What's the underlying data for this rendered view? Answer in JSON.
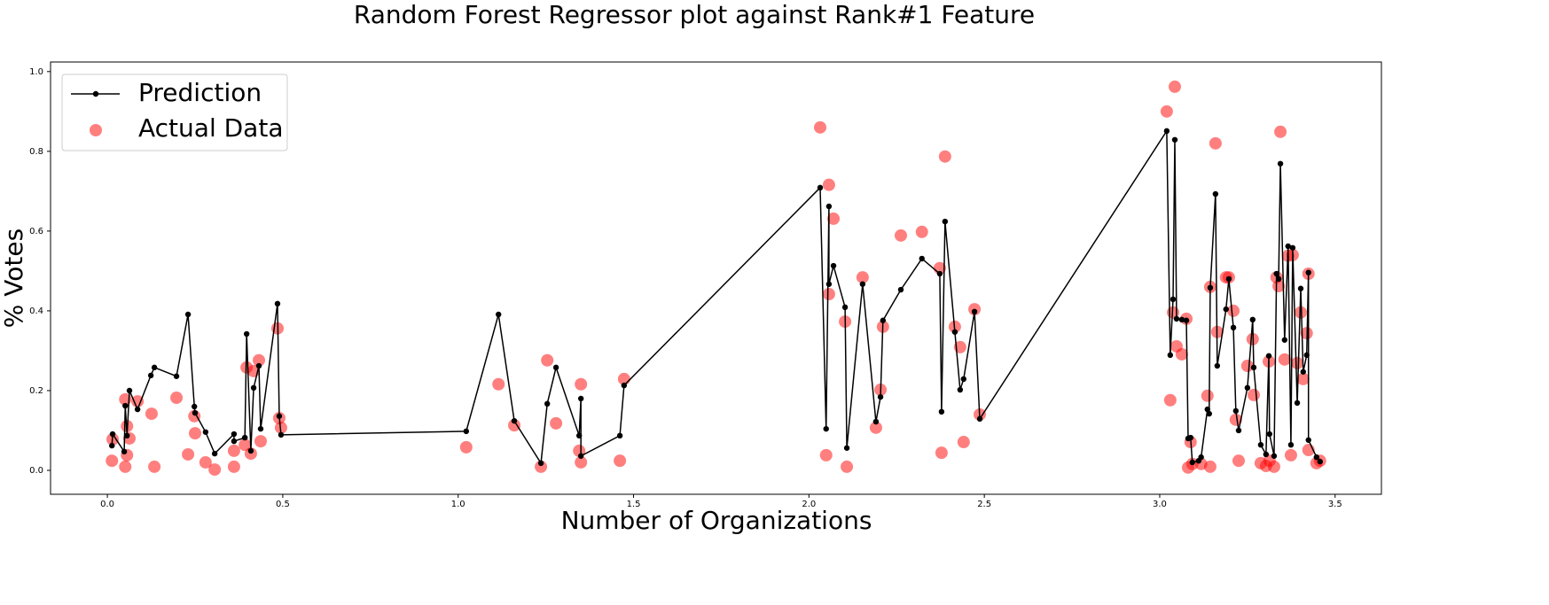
{
  "chart_data": {
    "type": "line",
    "title": "Random Forest Regressor plot against Rank#1 Feature",
    "x_label": "Number of Organizations",
    "y_label": "% Votes",
    "xlim": [
      -0.162,
      3.632
    ],
    "ylim": [
      -0.06,
      1.024
    ],
    "xticks": [
      {
        "value": 0,
        "label": "0.0"
      },
      0.5,
      {
        "value": 1,
        "label": "1.0"
      },
      1.5,
      {
        "value": 2,
        "label": "2.0"
      },
      2.5,
      {
        "value": 3,
        "label": "3.0"
      },
      3.5
    ],
    "yticks": [
      {
        "value": 0,
        "label": "0.0"
      },
      0.2,
      0.4,
      0.6,
      0.8,
      {
        "value": 1,
        "label": "1.0"
      }
    ],
    "grid": false,
    "legend_position": "upper left",
    "series": [
      {
        "name": "Prediction",
        "color": "#000000",
        "mode": "line",
        "x": [
          0.013,
          0.015,
          0.048,
          0.051,
          0.056,
          0.063,
          0.086,
          0.124,
          0.134,
          0.197,
          0.23,
          0.248,
          0.25,
          0.28,
          0.306,
          0.361,
          0.361,
          0.392,
          0.397,
          0.409,
          0.417,
          0.432,
          0.437,
          0.485,
          0.49,
          0.495,
          1.023,
          1.115,
          1.16,
          1.236,
          1.254,
          1.279,
          1.345,
          1.35,
          1.35,
          1.461,
          1.473,
          2.032,
          2.049,
          2.057,
          2.057,
          2.07,
          2.103,
          2.108,
          2.153,
          2.191,
          2.204,
          2.211,
          2.262,
          2.322,
          2.373,
          2.378,
          2.388,
          2.416,
          2.431,
          2.441,
          2.472,
          2.487,
          3.02,
          3.03,
          3.038,
          3.043,
          3.048,
          3.063,
          3.076,
          3.081,
          3.088,
          3.093,
          3.111,
          3.118,
          3.136,
          3.141,
          3.144,
          3.159,
          3.164,
          3.189,
          3.197,
          3.21,
          3.217,
          3.225,
          3.25,
          3.265,
          3.268,
          3.288,
          3.303,
          3.311,
          3.313,
          3.326,
          3.333,
          3.339,
          3.344,
          3.356,
          3.366,
          3.374,
          3.379,
          3.392,
          3.402,
          3.409,
          3.419,
          3.424,
          3.424,
          3.447,
          3.457
        ],
        "values": [
          0.062,
          0.091,
          0.047,
          0.162,
          0.087,
          0.2,
          0.153,
          0.238,
          0.258,
          0.236,
          0.391,
          0.16,
          0.144,
          0.096,
          0.042,
          0.091,
          0.073,
          0.082,
          0.342,
          0.049,
          0.207,
          0.262,
          0.104,
          0.418,
          0.136,
          0.089,
          0.098,
          0.391,
          0.124,
          0.018,
          0.167,
          0.258,
          0.087,
          0.18,
          0.036,
          0.087,
          0.213,
          0.709,
          0.104,
          0.662,
          0.467,
          0.513,
          0.409,
          0.056,
          0.467,
          0.122,
          0.184,
          0.376,
          0.453,
          0.531,
          0.493,
          0.147,
          0.624,
          0.347,
          0.202,
          0.229,
          0.398,
          0.129,
          0.851,
          0.289,
          0.429,
          0.829,
          0.38,
          0.378,
          0.376,
          0.08,
          0.082,
          0.02,
          0.024,
          0.033,
          0.153,
          0.142,
          0.458,
          0.693,
          0.262,
          0.404,
          0.48,
          0.358,
          0.149,
          0.1,
          0.207,
          0.378,
          0.258,
          0.064,
          0.04,
          0.287,
          0.091,
          0.036,
          0.493,
          0.48,
          0.769,
          0.327,
          0.562,
          0.064,
          0.558,
          0.169,
          0.456,
          0.247,
          0.289,
          0.496,
          0.076,
          0.033,
          0.022
        ]
      },
      {
        "name": "Actual Data",
        "color": "#ff0000",
        "mode": "scatter",
        "alpha": 0.5,
        "x": [
          0.015,
          0.013,
          0.051,
          0.056,
          0.051,
          0.056,
          0.063,
          0.086,
          0.126,
          0.134,
          0.197,
          0.23,
          0.248,
          0.25,
          0.28,
          0.306,
          0.361,
          0.361,
          0.392,
          0.397,
          0.409,
          0.417,
          0.432,
          0.437,
          0.485,
          0.49,
          0.495,
          1.023,
          1.115,
          1.16,
          1.236,
          1.254,
          1.279,
          1.345,
          1.35,
          1.35,
          1.461,
          1.473,
          2.032,
          2.049,
          2.057,
          2.057,
          2.07,
          2.103,
          2.108,
          2.153,
          2.191,
          2.204,
          2.211,
          2.262,
          2.322,
          2.373,
          2.378,
          2.388,
          2.416,
          2.431,
          2.441,
          2.472,
          2.487,
          3.02,
          3.03,
          3.038,
          3.043,
          3.048,
          3.063,
          3.076,
          3.081,
          3.088,
          3.093,
          3.118,
          3.136,
          3.144,
          3.144,
          3.159,
          3.164,
          3.189,
          3.197,
          3.21,
          3.217,
          3.225,
          3.25,
          3.265,
          3.268,
          3.288,
          3.303,
          3.311,
          3.313,
          3.326,
          3.333,
          3.339,
          3.344,
          3.356,
          3.366,
          3.374,
          3.379,
          3.392,
          3.402,
          3.409,
          3.419,
          3.424,
          3.424,
          3.447,
          3.457
        ],
        "values": [
          0.078,
          0.024,
          0.178,
          0.111,
          0.009,
          0.038,
          0.08,
          0.173,
          0.142,
          0.009,
          0.182,
          0.04,
          0.136,
          0.093,
          0.02,
          0.002,
          0.049,
          0.009,
          0.064,
          0.258,
          0.042,
          0.249,
          0.276,
          0.073,
          0.356,
          0.131,
          0.107,
          0.058,
          0.216,
          0.113,
          0.009,
          0.276,
          0.118,
          0.049,
          0.216,
          0.02,
          0.024,
          0.229,
          0.86,
          0.038,
          0.716,
          0.442,
          0.631,
          0.373,
          0.009,
          0.484,
          0.107,
          0.202,
          0.36,
          0.589,
          0.598,
          0.507,
          0.044,
          0.787,
          0.36,
          0.309,
          0.071,
          0.404,
          0.14,
          0.9,
          0.176,
          0.396,
          0.962,
          0.311,
          0.291,
          0.38,
          0.007,
          0.071,
          0.016,
          0.016,
          0.187,
          0.009,
          0.46,
          0.82,
          0.347,
          0.484,
          0.484,
          0.4,
          0.127,
          0.024,
          0.262,
          0.329,
          0.189,
          0.018,
          0.011,
          0.273,
          0.024,
          0.009,
          0.484,
          0.462,
          0.849,
          0.278,
          0.538,
          0.038,
          0.54,
          0.269,
          0.396,
          0.229,
          0.344,
          0.493,
          0.051,
          0.018,
          0.024
        ]
      }
    ]
  }
}
